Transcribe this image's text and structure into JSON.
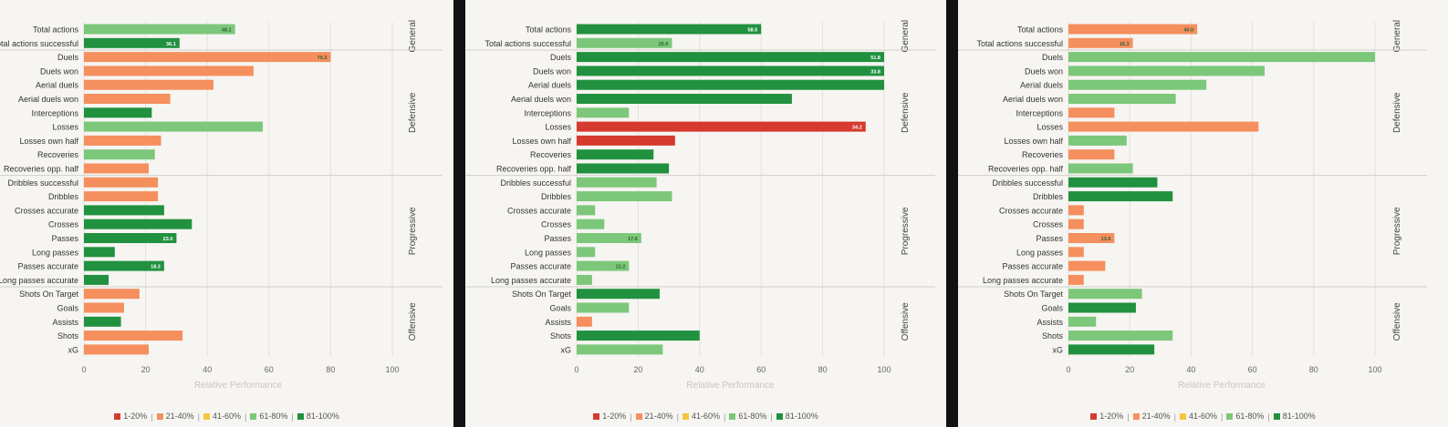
{
  "chart_data": [
    {
      "type": "bar",
      "orientation": "horizontal",
      "title": "",
      "xlabel": "Relative Performance",
      "ylabel": "",
      "xlim": [
        0,
        100
      ],
      "x_ticks": [
        "0",
        "20",
        "40",
        "60",
        "80",
        "100"
      ],
      "grid": true,
      "legend_position": "bottom",
      "categories": [
        "Total actions",
        "Total actions successful",
        "Duels",
        "Duels won",
        "Aerial duels",
        "Aerial duels won",
        "Interceptions",
        "Losses",
        "Losses own half",
        "Recoveries",
        "Recoveries opp. half",
        "Dribbles successful",
        "Dribbles",
        "Crosses accurate",
        "Crosses",
        "Passes",
        "Long passes",
        "Passes accurate",
        "Long passes accurate",
        "Shots On Target",
        "Goals",
        "Assists",
        "Shots",
        "xG"
      ],
      "values": [
        49,
        31,
        80,
        55,
        42,
        28,
        22,
        58,
        25,
        23,
        21,
        24,
        24,
        26,
        35,
        30,
        10,
        26,
        8,
        18,
        13,
        12,
        32,
        21
      ],
      "data_labels": [
        "48.1",
        "36.1",
        "70.3",
        "",
        "",
        "",
        "",
        "",
        "",
        "",
        "",
        "",
        "",
        "",
        "",
        "23.0",
        "",
        "18.3",
        "",
        "",
        "",
        "",
        "",
        ""
      ],
      "bar_colors": [
        "#7cc77a",
        "#21913f",
        "#f58f5e",
        "#f58f5e",
        "#f58f5e",
        "#f58f5e",
        "#21913f",
        "#7cc77a",
        "#f58f5e",
        "#7cc77a",
        "#f58f5e",
        "#f58f5e",
        "#f58f5e",
        "#21913f",
        "#21913f",
        "#21913f",
        "#21913f",
        "#21913f",
        "#21913f",
        "#f58f5e",
        "#f58f5e",
        "#21913f",
        "#f58f5e",
        "#f58f5e"
      ]
    },
    {
      "type": "bar",
      "orientation": "horizontal",
      "title": "",
      "xlabel": "Relative Performance",
      "ylabel": "",
      "xlim": [
        0,
        100
      ],
      "x_ticks": [
        "0",
        "20",
        "40",
        "60",
        "80",
        "100"
      ],
      "grid": true,
      "legend_position": "bottom",
      "categories": [
        "Total actions",
        "Total actions successful",
        "Duels",
        "Duels won",
        "Aerial duels",
        "Aerial duels won",
        "Interceptions",
        "Losses",
        "Losses own half",
        "Recoveries",
        "Recoveries opp. half",
        "Dribbles successful",
        "Dribbles",
        "Crosses accurate",
        "Crosses",
        "Passes",
        "Long passes",
        "Passes accurate",
        "Long passes accurate",
        "Shots On Target",
        "Goals",
        "Assists",
        "Shots",
        "xG"
      ],
      "values": [
        60,
        31,
        100,
        100,
        100,
        70,
        17,
        94,
        32,
        25,
        30,
        26,
        31,
        6,
        9,
        21,
        6,
        17,
        5,
        27,
        17,
        5,
        40,
        28
      ],
      "data_labels": [
        "58.5",
        "25.0",
        "51.8",
        "33.8",
        "",
        "",
        "",
        "34.2",
        "",
        "",
        "",
        "",
        "",
        "",
        "",
        "17.6",
        "",
        "12.2",
        "",
        "",
        "",
        "",
        "",
        ""
      ],
      "bar_colors": [
        "#21913f",
        "#7cc77a",
        "#21913f",
        "#21913f",
        "#21913f",
        "#21913f",
        "#7cc77a",
        "#d63a2f",
        "#d63a2f",
        "#21913f",
        "#21913f",
        "#7cc77a",
        "#7cc77a",
        "#7cc77a",
        "#7cc77a",
        "#7cc77a",
        "#7cc77a",
        "#7cc77a",
        "#7cc77a",
        "#21913f",
        "#7cc77a",
        "#f58f5e",
        "#21913f",
        "#7cc77a"
      ]
    },
    {
      "type": "bar",
      "orientation": "horizontal",
      "title": "",
      "xlabel": "Relative Performance",
      "ylabel": "",
      "xlim": [
        0,
        100
      ],
      "x_ticks": [
        "0",
        "20",
        "40",
        "60",
        "80",
        "100"
      ],
      "grid": true,
      "legend_position": "bottom",
      "categories": [
        "Total actions",
        "Total actions successful",
        "Duels",
        "Duels won",
        "Aerial duels",
        "Aerial duels won",
        "Interceptions",
        "Losses",
        "Losses own half",
        "Recoveries",
        "Recoveries opp. half",
        "Dribbles successful",
        "Dribbles",
        "Crosses accurate",
        "Crosses",
        "Passes",
        "Long passes",
        "Passes accurate",
        "Long passes accurate",
        "Shots On Target",
        "Goals",
        "Assists",
        "Shots",
        "xG"
      ],
      "values": [
        42,
        21,
        100,
        64,
        45,
        35,
        15,
        62,
        19,
        15,
        21,
        29,
        34,
        5,
        5,
        15,
        5,
        12,
        5,
        24,
        22,
        9,
        34,
        28
      ],
      "data_labels": [
        "40.0",
        "16.3",
        "",
        "",
        "",
        "",
        "",
        "",
        "",
        "",
        "",
        "",
        "",
        "",
        "",
        "13.6",
        "",
        "",
        "",
        "",
        "",
        "",
        "",
        ""
      ],
      "bar_colors": [
        "#f58f5e",
        "#f58f5e",
        "#7cc77a",
        "#7cc77a",
        "#7cc77a",
        "#7cc77a",
        "#f58f5e",
        "#f58f5e",
        "#7cc77a",
        "#f58f5e",
        "#7cc77a",
        "#21913f",
        "#21913f",
        "#f58f5e",
        "#f58f5e",
        "#f58f5e",
        "#f58f5e",
        "#f58f5e",
        "#f58f5e",
        "#7cc77a",
        "#21913f",
        "#7cc77a",
        "#7cc77a",
        "#21913f"
      ]
    }
  ],
  "groups": [
    {
      "label": "General",
      "start": 0,
      "end": 1
    },
    {
      "label": "Defensive",
      "start": 2,
      "end": 10
    },
    {
      "label": "Progressive",
      "start": 11,
      "end": 18
    },
    {
      "label": "Offensive",
      "start": 19,
      "end": 23
    }
  ],
  "legend": [
    {
      "label": "1-20%",
      "color": "#d63a2f"
    },
    {
      "label": "21-40%",
      "color": "#f58f5e"
    },
    {
      "label": "41-60%",
      "color": "#f5c542"
    },
    {
      "label": "61-80%",
      "color": "#7cc77a"
    },
    {
      "label": "81-100%",
      "color": "#21913f"
    }
  ]
}
